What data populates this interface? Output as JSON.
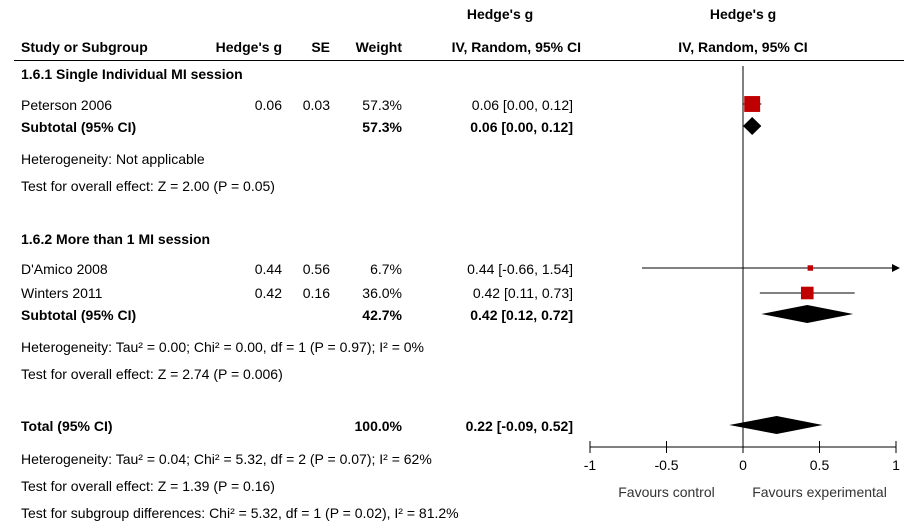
{
  "header": {
    "col_study": "Study or Subgroup",
    "col_g": "Hedge's g",
    "col_se": "SE",
    "col_weight": "Weight",
    "col_ci_title": "Hedge's g",
    "col_ci": "IV, Random, 95% CI",
    "plot_title": "Hedge's g",
    "plot_subtitle": "IV, Random, 95% CI"
  },
  "groups": [
    {
      "title": "1.6.1 Single Individual MI session",
      "studies": [
        {
          "name": "Peterson 2006",
          "g": "0.06",
          "se": "0.03",
          "weight": "57.3%",
          "ci": "0.06 [0.00, 0.12]"
        }
      ],
      "subtotal": {
        "label": "Subtotal (95% CI)",
        "weight": "57.3%",
        "ci": "0.06 [0.00, 0.12]"
      },
      "heterogeneity": "Heterogeneity: Not applicable",
      "overall": "Test for overall effect: Z = 2.00 (P = 0.05)"
    },
    {
      "title": "1.6.2 More than 1 MI session",
      "studies": [
        {
          "name": "D'Amico 2008",
          "g": "0.44",
          "se": "0.56",
          "weight": "6.7%",
          "ci": "0.44 [-0.66, 1.54]"
        },
        {
          "name": "Winters 2011",
          "g": "0.42",
          "se": "0.16",
          "weight": "36.0%",
          "ci": "0.42 [0.11, 0.73]"
        }
      ],
      "subtotal": {
        "label": "Subtotal (95% CI)",
        "weight": "42.7%",
        "ci": "0.42 [0.12, 0.72]"
      },
      "heterogeneity": "Heterogeneity: Tau² = 0.00; Chi² = 0.00, df = 1 (P = 0.97); I² = 0%",
      "overall": "Test for overall effect: Z = 2.74 (P = 0.006)"
    }
  ],
  "total": {
    "label": "Total (95% CI)",
    "weight": "100.0%",
    "ci": "0.22 [-0.09, 0.52]",
    "heterogeneity": "Heterogeneity: Tau² = 0.04; Chi² = 5.32, df = 2 (P = 0.07); I² = 62%",
    "overall": "Test for overall effect: Z = 1.39 (P = 0.16)",
    "subgroup_diff": "Test for subgroup differences: Chi² = 5.32, df = 1 (P = 0.02), I² = 81.2%"
  },
  "axis": {
    "favours_left": "Favours control",
    "favours_right": "Favours experimental"
  },
  "colors": {
    "study_marker": "#c00000",
    "diamond": "#000000",
    "line": "#000000"
  },
  "chart_data": {
    "type": "forest",
    "xlim": [
      -1,
      1
    ],
    "ticks": [
      -1,
      -0.5,
      0,
      0.5,
      1
    ],
    "tick_labels": [
      "-1",
      "-0.5",
      "0",
      "0.5",
      "1"
    ],
    "reference_line": 0,
    "studies": [
      {
        "name": "Peterson 2006",
        "est": 0.06,
        "lo": 0.0,
        "hi": 0.12,
        "weight": 57.3
      },
      {
        "name": "D'Amico 2008",
        "est": 0.44,
        "lo": -0.66,
        "hi": 1.54,
        "weight": 6.7
      },
      {
        "name": "Winters 2011",
        "est": 0.42,
        "lo": 0.11,
        "hi": 0.73,
        "weight": 36.0
      }
    ],
    "summaries": [
      {
        "name": "Subtotal 1.6.1",
        "est": 0.06,
        "lo": 0.0,
        "hi": 0.12
      },
      {
        "name": "Subtotal 1.6.2",
        "est": 0.42,
        "lo": 0.12,
        "hi": 0.72
      },
      {
        "name": "Total",
        "est": 0.22,
        "lo": -0.09,
        "hi": 0.52
      }
    ]
  }
}
